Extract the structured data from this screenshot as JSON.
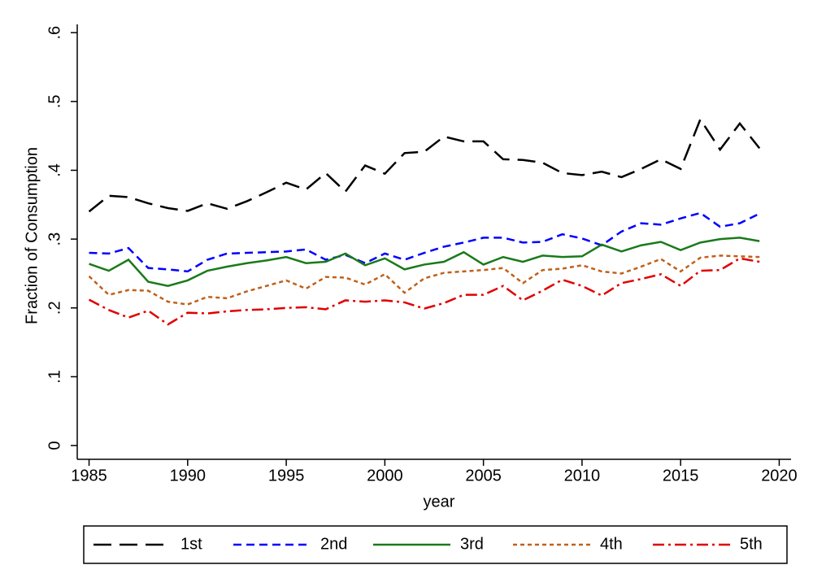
{
  "chart_data": {
    "type": "line",
    "y_label": "Fraction of Consumption",
    "x_label": "year",
    "x": [
      1985,
      1986,
      1987,
      1988,
      1989,
      1990,
      1991,
      1992,
      1993,
      1994,
      1995,
      1996,
      1997,
      1998,
      1999,
      2000,
      2001,
      2002,
      2003,
      2004,
      2005,
      2006,
      2007,
      2008,
      2009,
      2010,
      2011,
      2012,
      2013,
      2014,
      2015,
      2016,
      2017,
      2018,
      2019
    ],
    "series": [
      {
        "name": "1st",
        "color": "#000000",
        "values": [
          0.34,
          0.363,
          0.361,
          0.352,
          0.345,
          0.341,
          0.352,
          0.344,
          0.355,
          0.368,
          0.382,
          0.372,
          0.396,
          0.369,
          0.407,
          0.395,
          0.425,
          0.427,
          0.449,
          0.442,
          0.442,
          0.416,
          0.415,
          0.411,
          0.396,
          0.393,
          0.398,
          0.39,
          0.402,
          0.416,
          0.402,
          0.474,
          0.43,
          0.468,
          0.432
        ]
      },
      {
        "name": "2nd",
        "color": "#0000ff",
        "values": [
          0.28,
          0.279,
          0.287,
          0.258,
          0.256,
          0.253,
          0.27,
          0.279,
          0.28,
          0.281,
          0.282,
          0.285,
          0.27,
          0.277,
          0.265,
          0.279,
          0.27,
          0.28,
          0.289,
          0.295,
          0.302,
          0.302,
          0.295,
          0.296,
          0.307,
          0.301,
          0.291,
          0.311,
          0.323,
          0.321,
          0.33,
          0.338,
          0.318,
          0.323,
          0.337
        ]
      },
      {
        "name": "3rd",
        "color": "#1a7a1a",
        "values": [
          0.264,
          0.254,
          0.27,
          0.238,
          0.232,
          0.24,
          0.254,
          0.26,
          0.265,
          0.269,
          0.274,
          0.265,
          0.267,
          0.279,
          0.262,
          0.272,
          0.256,
          0.263,
          0.267,
          0.281,
          0.263,
          0.274,
          0.267,
          0.276,
          0.274,
          0.275,
          0.292,
          0.282,
          0.291,
          0.296,
          0.284,
          0.295,
          0.3,
          0.302,
          0.297
        ]
      },
      {
        "name": "4th",
        "color": "#c0601a",
        "values": [
          0.246,
          0.219,
          0.226,
          0.225,
          0.209,
          0.205,
          0.216,
          0.214,
          0.224,
          0.232,
          0.24,
          0.228,
          0.245,
          0.244,
          0.234,
          0.249,
          0.222,
          0.243,
          0.251,
          0.253,
          0.255,
          0.258,
          0.236,
          0.255,
          0.257,
          0.262,
          0.253,
          0.25,
          0.26,
          0.271,
          0.253,
          0.273,
          0.276,
          0.275,
          0.274
        ]
      },
      {
        "name": "5th",
        "color": "#e00000",
        "values": [
          0.212,
          0.197,
          0.186,
          0.196,
          0.176,
          0.193,
          0.192,
          0.195,
          0.197,
          0.198,
          0.2,
          0.201,
          0.198,
          0.211,
          0.209,
          0.211,
          0.208,
          0.199,
          0.207,
          0.219,
          0.219,
          0.232,
          0.211,
          0.225,
          0.241,
          0.232,
          0.218,
          0.236,
          0.242,
          0.249,
          0.232,
          0.254,
          0.255,
          0.272,
          0.267
        ]
      }
    ],
    "xlim": [
      1984.4,
      2020.6
    ],
    "xticks": [
      1985,
      1990,
      1995,
      2000,
      2005,
      2010,
      2015,
      2020
    ],
    "ylim": [
      -0.02,
      0.612
    ],
    "yticks": [
      0,
      {
        "value": 0.1,
        "label": ".1"
      },
      {
        "value": 0.2,
        "label": ".2"
      },
      {
        "value": 0.3,
        "label": ".3"
      },
      {
        "value": 0.4,
        "label": ".4"
      },
      {
        "value": 0.5,
        "label": ".5"
      },
      {
        "value": 0.6,
        "label": ".6"
      }
    ],
    "legend": "bottom",
    "grid": false
  }
}
